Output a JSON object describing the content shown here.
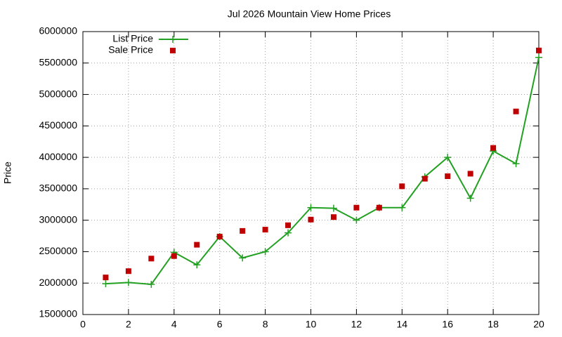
{
  "chart_data": {
    "type": "line",
    "title": "Jul 2026 Mountain View Home Prices",
    "y_label": "Price",
    "x": [
      1,
      2,
      3,
      4,
      5,
      6,
      7,
      8,
      9,
      10,
      11,
      12,
      13,
      14,
      15,
      16,
      17,
      18,
      19,
      20
    ],
    "series": [
      {
        "name": "List Price",
        "color": "#22a022",
        "line": true,
        "marker": "plus",
        "values": [
          1990000,
          2010000,
          1980000,
          2490000,
          2290000,
          2740000,
          2400000,
          2500000,
          2800000,
          3200000,
          3190000,
          3000000,
          3200000,
          3200000,
          3690000,
          4000000,
          3350000,
          4100000,
          3900000,
          5590000
        ]
      },
      {
        "name": "Sale Price",
        "color": "#c00000",
        "line": false,
        "marker": "square",
        "values": [
          2090000,
          2190000,
          2390000,
          2430000,
          2610000,
          2740000,
          2830000,
          2850000,
          2920000,
          3010000,
          3050000,
          3200000,
          3200000,
          3540000,
          3660000,
          3700000,
          3740000,
          4150000,
          4730000,
          5700000
        ]
      }
    ],
    "xlim": [
      0,
      20
    ],
    "xticks": [
      0,
      2,
      4,
      6,
      8,
      10,
      12,
      14,
      16,
      18,
      20
    ],
    "ylim": [
      1500000,
      6000000
    ],
    "yticks": [
      1500000,
      2000000,
      2500000,
      3000000,
      3500000,
      4000000,
      4500000,
      5000000,
      5500000,
      6000000
    ],
    "grid": true,
    "legend": "top-left"
  }
}
